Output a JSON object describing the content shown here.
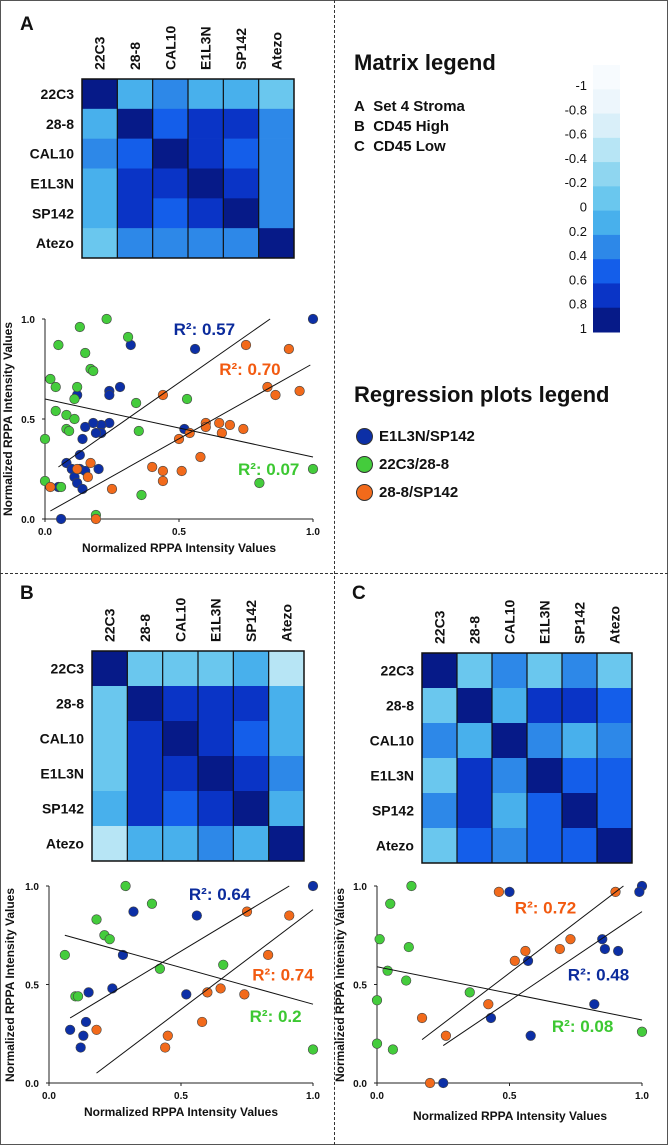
{
  "panels": {
    "a": "A",
    "b": "B",
    "c": "C"
  },
  "matrix_legend": {
    "title": "Matrix legend",
    "items": [
      {
        "key": "A",
        "label": "Set 4 Stroma"
      },
      {
        "key": "B",
        "label": "CD45 High"
      },
      {
        "key": "C",
        "label": "CD45 Low"
      }
    ],
    "scale": {
      "ticks": [
        "-1",
        "-0.8",
        "-0.6",
        "-0.4",
        "-0.2",
        "0",
        "0.2",
        "0.4",
        "0.6",
        "0.8",
        "1"
      ],
      "colors": [
        "#f7fbfe",
        "#edf6fc",
        "#d9eff9",
        "#b7e5f5",
        "#8fd6f0",
        "#6ac7ee",
        "#48b0ec",
        "#2d88e8",
        "#145eea",
        "#0a34c6",
        "#061a88"
      ]
    }
  },
  "regression_legend": {
    "title": "Regression plots legend",
    "items": [
      {
        "label": "E1L3N/SP142",
        "color": "#0c2fa6"
      },
      {
        "label": "22C3/28-8",
        "color": "#44cc3c"
      },
      {
        "label": "28-8/SP142",
        "color": "#f26a1b"
      }
    ]
  },
  "chart_data": [
    {
      "id": "A-matrix",
      "type": "heatmap",
      "panel": "A",
      "labels": [
        "22C3",
        "28-8",
        "CAL10",
        "E1L3N",
        "SP142",
        "Atezo"
      ],
      "values": [
        [
          1,
          0.1,
          0.4,
          0.1,
          0.2,
          0
        ],
        [
          0.1,
          1,
          0.6,
          0.9,
          0.9,
          0.4
        ],
        [
          0.4,
          0.6,
          1,
          0.7,
          0.5,
          0.3
        ],
        [
          0.1,
          0.9,
          0.7,
          1,
          0.8,
          0.4
        ],
        [
          0.2,
          0.9,
          0.5,
          0.8,
          1,
          0.4
        ],
        [
          0,
          0.4,
          0.3,
          0.4,
          0.4,
          1
        ]
      ],
      "range": [
        -1,
        1
      ]
    },
    {
      "id": "B-matrix",
      "type": "heatmap",
      "panel": "B",
      "labels": [
        "22C3",
        "28-8",
        "CAL10",
        "E1L3N",
        "SP142",
        "Atezo"
      ],
      "values": [
        [
          1,
          0,
          0,
          0,
          0.1,
          -0.3
        ],
        [
          0,
          1,
          0.8,
          0.9,
          0.9,
          0.2
        ],
        [
          0,
          0.8,
          1,
          0.8,
          0.6,
          0.2
        ],
        [
          0,
          0.9,
          0.8,
          1,
          0.8,
          0.3
        ],
        [
          0.1,
          0.9,
          0.6,
          0.8,
          1,
          0.2
        ],
        [
          -0.3,
          0.2,
          0.2,
          0.3,
          0.2,
          1
        ]
      ],
      "range": [
        -1,
        1
      ]
    },
    {
      "id": "C-matrix",
      "type": "heatmap",
      "panel": "C",
      "labels": [
        "22C3",
        "28-8",
        "CAL10",
        "E1L3N",
        "SP142",
        "Atezo"
      ],
      "values": [
        [
          1,
          0,
          0.4,
          0,
          0.3,
          -0.1
        ],
        [
          0,
          1,
          0.1,
          0.9,
          0.9,
          0.6
        ],
        [
          0.4,
          0.1,
          1,
          0.4,
          0.1,
          0.4
        ],
        [
          0,
          0.9,
          0.4,
          1,
          0.6,
          0.6
        ],
        [
          0.3,
          0.9,
          0.1,
          0.6,
          1,
          0.6
        ],
        [
          -0.1,
          0.6,
          0.4,
          0.6,
          0.6,
          1
        ]
      ],
      "range": [
        -1,
        1
      ]
    },
    {
      "id": "A-scatter",
      "type": "scatter",
      "panel": "A",
      "xlabel": "Normalized RPPA Intensity Values",
      "ylabel": "Normalized RPPA Intensity Values",
      "xlim": [
        0,
        1
      ],
      "ylim": [
        0,
        1
      ],
      "xticks": [
        "0.0",
        "0.5",
        "1.0"
      ],
      "yticks": [
        "0.0",
        "0.5",
        "1.0"
      ],
      "series": [
        {
          "name": "E1L3N/SP142",
          "color": "#0c2fa6",
          "r2": "R²: 0.57",
          "r2_color": "#0b2b9c",
          "r2_at": [
            0.48,
            0.92
          ],
          "fit": [
            [
              0.05,
              0.26
            ],
            [
              0.84,
              1.0
            ]
          ],
          "points": [
            [
              1.0,
              1.0
            ],
            [
              0.56,
              0.85
            ],
            [
              0.32,
              0.87
            ],
            [
              0.28,
              0.66
            ],
            [
              0.24,
              0.64
            ],
            [
              0.24,
              0.62
            ],
            [
              0.12,
              0.62
            ],
            [
              0.24,
              0.48
            ],
            [
              0.21,
              0.47
            ],
            [
              0.18,
              0.48
            ],
            [
              0.15,
              0.46
            ],
            [
              0.21,
              0.43
            ],
            [
              0.19,
              0.43
            ],
            [
              0.14,
              0.4
            ],
            [
              0.52,
              0.45
            ],
            [
              0.13,
              0.32
            ],
            [
              0.08,
              0.28
            ],
            [
              0.1,
              0.25
            ],
            [
              0.11,
              0.21
            ],
            [
              0.12,
              0.18
            ],
            [
              0.13,
              0.25
            ],
            [
              0.15,
              0.24
            ],
            [
              0.2,
              0.25
            ],
            [
              0.14,
              0.15
            ],
            [
              0.05,
              0.16
            ],
            [
              0.06,
              0.0
            ]
          ]
        },
        {
          "name": "22C3/28-8",
          "color": "#44cc3c",
          "r2": "R²: 0.07",
          "r2_color": "#3cc832",
          "r2_at": [
            0.72,
            0.22
          ],
          "fit": [
            [
              0.0,
              0.6
            ],
            [
              1.0,
              0.31
            ]
          ],
          "points": [
            [
              0.23,
              1.0
            ],
            [
              0.13,
              0.96
            ],
            [
              0.31,
              0.91
            ],
            [
              0.05,
              0.87
            ],
            [
              0.15,
              0.83
            ],
            [
              0.17,
              0.75
            ],
            [
              0.18,
              0.74
            ],
            [
              0.02,
              0.7
            ],
            [
              0.04,
              0.66
            ],
            [
              0.12,
              0.66
            ],
            [
              0.11,
              0.6
            ],
            [
              0.04,
              0.54
            ],
            [
              0.34,
              0.58
            ],
            [
              0.53,
              0.6
            ],
            [
              0.08,
              0.52
            ],
            [
              0.11,
              0.5
            ],
            [
              0.08,
              0.45
            ],
            [
              0.09,
              0.44
            ],
            [
              0.35,
              0.44
            ],
            [
              0.0,
              0.4
            ],
            [
              0.0,
              0.19
            ],
            [
              0.06,
              0.16
            ],
            [
              0.36,
              0.12
            ],
            [
              0.19,
              0.02
            ],
            [
              0.8,
              0.18
            ],
            [
              1.0,
              0.25
            ]
          ]
        },
        {
          "name": "28-8/SP142",
          "color": "#f26a1b",
          "r2": "R²: 0.70",
          "r2_color": "#f25a10",
          "r2_at": [
            0.65,
            0.72
          ],
          "fit": [
            [
              0.02,
              0.04
            ],
            [
              0.99,
              0.77
            ]
          ],
          "points": [
            [
              0.75,
              0.87
            ],
            [
              0.91,
              0.85
            ],
            [
              0.83,
              0.66
            ],
            [
              0.86,
              0.62
            ],
            [
              0.95,
              0.64
            ],
            [
              0.44,
              0.62
            ],
            [
              0.6,
              0.48
            ],
            [
              0.6,
              0.46
            ],
            [
              0.65,
              0.48
            ],
            [
              0.66,
              0.43
            ],
            [
              0.69,
              0.47
            ],
            [
              0.74,
              0.45
            ],
            [
              0.54,
              0.43
            ],
            [
              0.5,
              0.4
            ],
            [
              0.58,
              0.31
            ],
            [
              0.4,
              0.26
            ],
            [
              0.44,
              0.24
            ],
            [
              0.51,
              0.24
            ],
            [
              0.44,
              0.19
            ],
            [
              0.25,
              0.15
            ],
            [
              0.16,
              0.21
            ],
            [
              0.12,
              0.25
            ],
            [
              0.17,
              0.28
            ],
            [
              0.02,
              0.16
            ],
            [
              0.19,
              0.0
            ]
          ]
        }
      ]
    },
    {
      "id": "B-scatter",
      "type": "scatter",
      "panel": "B",
      "xlabel": "Normalized RPPA Intensity Values",
      "ylabel": "Normalized RPPA Intensity Values",
      "xlim": [
        0,
        1
      ],
      "ylim": [
        0,
        1
      ],
      "xticks": [
        "0.0",
        "0.5",
        "1.0"
      ],
      "yticks": [
        "0.0",
        "0.5",
        "1.0"
      ],
      "series": [
        {
          "name": "E1L3N/SP142",
          "color": "#0c2fa6",
          "r2": "R²: 0.64",
          "r2_color": "#0b2b9c",
          "r2_at": [
            0.53,
            0.93
          ],
          "fit": [
            [
              0.08,
              0.33
            ],
            [
              0.91,
              1.0
            ]
          ],
          "points": [
            [
              1.0,
              1.0
            ],
            [
              0.32,
              0.87
            ],
            [
              0.56,
              0.85
            ],
            [
              0.28,
              0.65
            ],
            [
              0.24,
              0.48
            ],
            [
              0.15,
              0.46
            ],
            [
              0.52,
              0.45
            ],
            [
              0.08,
              0.27
            ],
            [
              0.14,
              0.31
            ],
            [
              0.13,
              0.24
            ],
            [
              0.12,
              0.18
            ]
          ]
        },
        {
          "name": "22C3/28-8",
          "color": "#44cc3c",
          "r2": "R²: 0.2",
          "r2_color": "#3cc832",
          "r2_at": [
            0.76,
            0.31
          ],
          "fit": [
            [
              0.06,
              0.75
            ],
            [
              1.0,
              0.4
            ]
          ],
          "points": [
            [
              0.29,
              1.0
            ],
            [
              0.39,
              0.91
            ],
            [
              0.18,
              0.83
            ],
            [
              0.21,
              0.75
            ],
            [
              0.23,
              0.73
            ],
            [
              0.06,
              0.65
            ],
            [
              0.42,
              0.58
            ],
            [
              0.66,
              0.6
            ],
            [
              0.1,
              0.44
            ],
            [
              0.11,
              0.44
            ],
            [
              1.0,
              0.17
            ]
          ]
        },
        {
          "name": "28-8/SP142",
          "color": "#f26a1b",
          "r2": "R²: 0.74",
          "r2_color": "#f25a10",
          "r2_at": [
            0.77,
            0.52
          ],
          "fit": [
            [
              0.18,
              0.05
            ],
            [
              1.0,
              0.88
            ]
          ],
          "points": [
            [
              0.75,
              0.87
            ],
            [
              0.91,
              0.85
            ],
            [
              0.83,
              0.65
            ],
            [
              0.65,
              0.48
            ],
            [
              0.6,
              0.46
            ],
            [
              0.74,
              0.45
            ],
            [
              0.58,
              0.31
            ],
            [
              0.18,
              0.27
            ],
            [
              0.45,
              0.24
            ],
            [
              0.44,
              0.18
            ]
          ]
        }
      ]
    },
    {
      "id": "C-scatter",
      "type": "scatter",
      "panel": "C",
      "xlabel": "Normalized RPPA Intensity Values",
      "ylabel": "Normalized RPPA Intensity Values",
      "xlim": [
        0,
        1
      ],
      "ylim": [
        0,
        1
      ],
      "xticks": [
        "0.0",
        "0.5",
        "1.0"
      ],
      "yticks": [
        "0.0",
        "0.5",
        "1.0"
      ],
      "series": [
        {
          "name": "E1L3N/SP142",
          "color": "#0c2fa6",
          "r2": "R²: 0.48",
          "r2_color": "#0b2b9c",
          "r2_at": [
            0.72,
            0.52
          ],
          "fit": [
            [
              0.25,
              0.19
            ],
            [
              1.0,
              0.87
            ]
          ],
          "points": [
            [
              0.5,
              0.97
            ],
            [
              1.0,
              1.0
            ],
            [
              0.99,
              0.97
            ],
            [
              0.85,
              0.73
            ],
            [
              0.86,
              0.68
            ],
            [
              0.91,
              0.67
            ],
            [
              0.57,
              0.62
            ],
            [
              0.82,
              0.4
            ],
            [
              0.43,
              0.33
            ],
            [
              0.58,
              0.24
            ],
            [
              0.25,
              0.0
            ]
          ]
        },
        {
          "name": "22C3/28-8",
          "color": "#44cc3c",
          "r2": "R²: 0.08",
          "r2_color": "#3cc832",
          "r2_at": [
            0.66,
            0.26
          ],
          "fit": [
            [
              0.0,
              0.59
            ],
            [
              1.0,
              0.32
            ]
          ],
          "points": [
            [
              0.13,
              1.0
            ],
            [
              0.05,
              0.91
            ],
            [
              0.01,
              0.73
            ],
            [
              0.12,
              0.69
            ],
            [
              0.04,
              0.57
            ],
            [
              0.11,
              0.52
            ],
            [
              0.35,
              0.46
            ],
            [
              0.0,
              0.42
            ],
            [
              0.0,
              0.2
            ],
            [
              0.06,
              0.17
            ],
            [
              1.0,
              0.26
            ]
          ]
        },
        {
          "name": "28-8/SP142",
          "color": "#f26a1b",
          "r2": "R²: 0.72",
          "r2_color": "#f25a10",
          "r2_at": [
            0.52,
            0.86
          ],
          "fit": [
            [
              0.17,
              0.22
            ],
            [
              0.93,
              1.0
            ]
          ],
          "points": [
            [
              0.46,
              0.97
            ],
            [
              0.9,
              0.97
            ],
            [
              0.73,
              0.73
            ],
            [
              0.69,
              0.68
            ],
            [
              0.56,
              0.67
            ],
            [
              0.52,
              0.62
            ],
            [
              0.42,
              0.4
            ],
            [
              0.17,
              0.33
            ],
            [
              0.26,
              0.24
            ],
            [
              0.2,
              0.0
            ]
          ]
        }
      ]
    }
  ]
}
